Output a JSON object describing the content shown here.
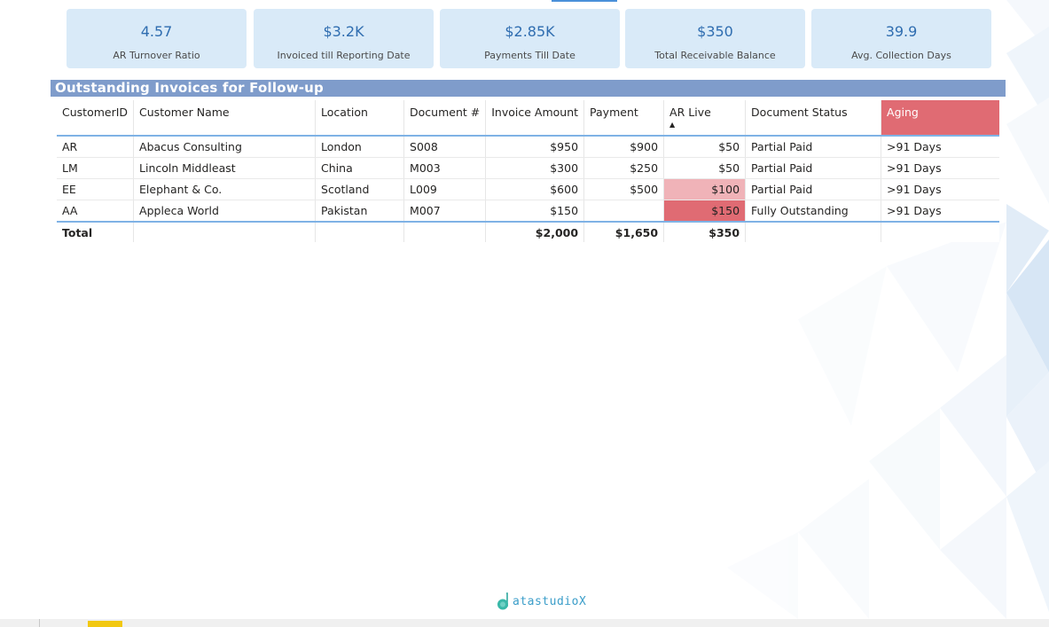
{
  "kpis": [
    {
      "value": "4.57",
      "label": "AR Turnover Ratio"
    },
    {
      "value": "$3.2K",
      "label": "Invoiced till Reporting Date"
    },
    {
      "value": "$2.85K",
      "label": "Payments Till Date"
    },
    {
      "value": "$350",
      "label": "Total Receivable Balance"
    },
    {
      "value": "39.9",
      "label": "Avg. Collection Days"
    }
  ],
  "table": {
    "title": "Outstanding Invoices for Follow-up",
    "columns": [
      "CustomerID",
      "Customer Name",
      "Location",
      "Document #",
      "Invoice Amount",
      "Payment",
      "AR Live",
      "Document Status",
      "Aging"
    ],
    "sorted_column": "AR Live",
    "sort_icon": "sort-up-icon",
    "rows": [
      {
        "customer_id": "AR",
        "customer_name": "Abacus Consulting",
        "location": "London",
        "document": "S008",
        "invoice_amount": "$950",
        "payment": "$900",
        "ar_live": "$50",
        "status": "Partial Paid",
        "aging": ">91 Days"
      },
      {
        "customer_id": "LM",
        "customer_name": "Lincoln Middleast",
        "location": "China",
        "document": "M003",
        "invoice_amount": "$300",
        "payment": "$250",
        "ar_live": "$50",
        "status": "Partial Paid",
        "aging": ">91 Days"
      },
      {
        "customer_id": "EE",
        "customer_name": "Elephant & Co.",
        "location": "Scotland",
        "document": "L009",
        "invoice_amount": "$600",
        "payment": "$500",
        "ar_live": "$100",
        "status": "Partial Paid",
        "aging": ">91 Days"
      },
      {
        "customer_id": "AA",
        "customer_name": "Appleca World",
        "location": "Pakistan",
        "document": "M007",
        "invoice_amount": "$150",
        "payment": "",
        "ar_live": "$150",
        "status": "Fully Outstanding",
        "aging": ">91 Days"
      }
    ],
    "total": {
      "label": "Total",
      "invoice_amount": "$2,000",
      "payment": "$1,650",
      "ar_live": "$350"
    }
  },
  "colors": {
    "kpi_bg": "#d9eaf8",
    "kpi_value": "#2f6db0",
    "title_bar": "#7f9ccb",
    "aging_header": "#e06b73",
    "ar_highlight_strong": "#e06b73",
    "ar_highlight_light": "#f0b3b8",
    "accent_line": "#7fb2e5",
    "page_tab": "#f2c811"
  },
  "logo": {
    "icon": "datastudiox-logo-icon",
    "text": "atastudioX"
  }
}
